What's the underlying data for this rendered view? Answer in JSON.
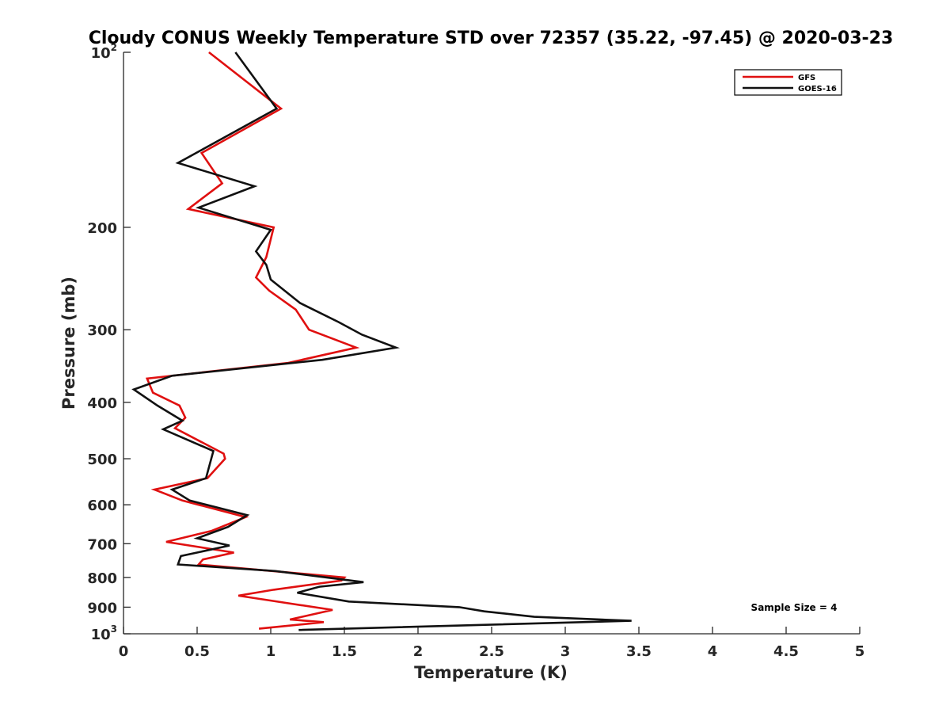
{
  "chart_data": {
    "type": "line",
    "title": "Cloudy CONUS Weekly Temperature STD over 72357 (35.22, -97.45) @ 2020-03-23",
    "xlabel": "Temperature (K)",
    "ylabel": "Pressure (mb)",
    "xlim": [
      0,
      5
    ],
    "ylim": [
      100,
      1000
    ],
    "y_scale": "log",
    "y_reversed": true,
    "grid": false,
    "legend_position": "top-right",
    "x_ticks": [
      {
        "value": 0,
        "label": "0"
      },
      {
        "value": 0.5,
        "label": "0.5"
      },
      {
        "value": 1,
        "label": "1"
      },
      {
        "value": 1.5,
        "label": "1.5"
      },
      {
        "value": 2,
        "label": "2"
      },
      {
        "value": 2.5,
        "label": "2.5"
      },
      {
        "value": 3,
        "label": "3"
      },
      {
        "value": 3.5,
        "label": "3.5"
      },
      {
        "value": 4,
        "label": "4"
      },
      {
        "value": 4.5,
        "label": "4.5"
      },
      {
        "value": 5,
        "label": "5"
      }
    ],
    "y_ticks": [
      {
        "value": 100,
        "base": "10",
        "exp": "2"
      },
      {
        "value": 200,
        "base": "200",
        "exp": ""
      },
      {
        "value": 300,
        "base": "300",
        "exp": ""
      },
      {
        "value": 400,
        "base": "400",
        "exp": ""
      },
      {
        "value": 500,
        "base": "500",
        "exp": ""
      },
      {
        "value": 600,
        "base": "600",
        "exp": ""
      },
      {
        "value": 700,
        "base": "700",
        "exp": ""
      },
      {
        "value": 800,
        "base": "800",
        "exp": ""
      },
      {
        "value": 900,
        "base": "900",
        "exp": ""
      },
      {
        "value": 1000,
        "base": "10",
        "exp": "3"
      }
    ],
    "annotation": "Sample Size = 4",
    "series": [
      {
        "name": "GFS",
        "color": "#e01010",
        "points": [
          [
            0.58,
            100
          ],
          [
            1.07,
            125
          ],
          [
            0.53,
            149
          ],
          [
            0.67,
            168
          ],
          [
            0.44,
            186
          ],
          [
            1.02,
            200
          ],
          [
            0.97,
            225
          ],
          [
            0.9,
            244
          ],
          [
            0.99,
            257
          ],
          [
            1.17,
            277
          ],
          [
            1.26,
            300
          ],
          [
            1.58,
            322
          ],
          [
            1.12,
            342
          ],
          [
            0.16,
            364
          ],
          [
            0.2,
            385
          ],
          [
            0.38,
            405
          ],
          [
            0.42,
            425
          ],
          [
            0.35,
            443
          ],
          [
            0.68,
            490
          ],
          [
            0.69,
            500
          ],
          [
            0.57,
            540
          ],
          [
            0.21,
            565
          ],
          [
            0.4,
            590
          ],
          [
            0.83,
            630
          ],
          [
            0.6,
            665
          ],
          [
            0.29,
            695
          ],
          [
            0.75,
            725
          ],
          [
            0.54,
            745
          ],
          [
            0.51,
            760
          ],
          [
            1.5,
            800
          ],
          [
            1.48,
            810
          ],
          [
            1.02,
            840
          ],
          [
            0.78,
            860
          ],
          [
            1.42,
            910
          ],
          [
            1.13,
            945
          ],
          [
            1.36,
            955
          ],
          [
            0.92,
            980
          ]
        ]
      },
      {
        "name": "GOES-16",
        "color": "#111111",
        "points": [
          [
            0.76,
            100
          ],
          [
            1.04,
            125
          ],
          [
            0.37,
            155
          ],
          [
            0.89,
            170
          ],
          [
            0.51,
            185
          ],
          [
            1.0,
            202
          ],
          [
            0.9,
            220
          ],
          [
            0.97,
            232
          ],
          [
            1.0,
            246
          ],
          [
            1.2,
            270
          ],
          [
            1.46,
            291
          ],
          [
            1.62,
            306
          ],
          [
            1.85,
            322
          ],
          [
            1.35,
            338
          ],
          [
            0.33,
            360
          ],
          [
            0.07,
            380
          ],
          [
            0.23,
            405
          ],
          [
            0.4,
            430
          ],
          [
            0.27,
            445
          ],
          [
            0.61,
            485
          ],
          [
            0.56,
            540
          ],
          [
            0.33,
            565
          ],
          [
            0.45,
            590
          ],
          [
            0.84,
            625
          ],
          [
            0.71,
            655
          ],
          [
            0.5,
            685
          ],
          [
            0.72,
            705
          ],
          [
            0.39,
            735
          ],
          [
            0.37,
            760
          ],
          [
            1.03,
            780
          ],
          [
            1.63,
            815
          ],
          [
            1.33,
            830
          ],
          [
            1.18,
            850
          ],
          [
            1.53,
            880
          ],
          [
            2.28,
            900
          ],
          [
            2.45,
            915
          ],
          [
            2.79,
            935
          ],
          [
            3.45,
            950
          ],
          [
            1.19,
            985
          ]
        ]
      }
    ]
  }
}
